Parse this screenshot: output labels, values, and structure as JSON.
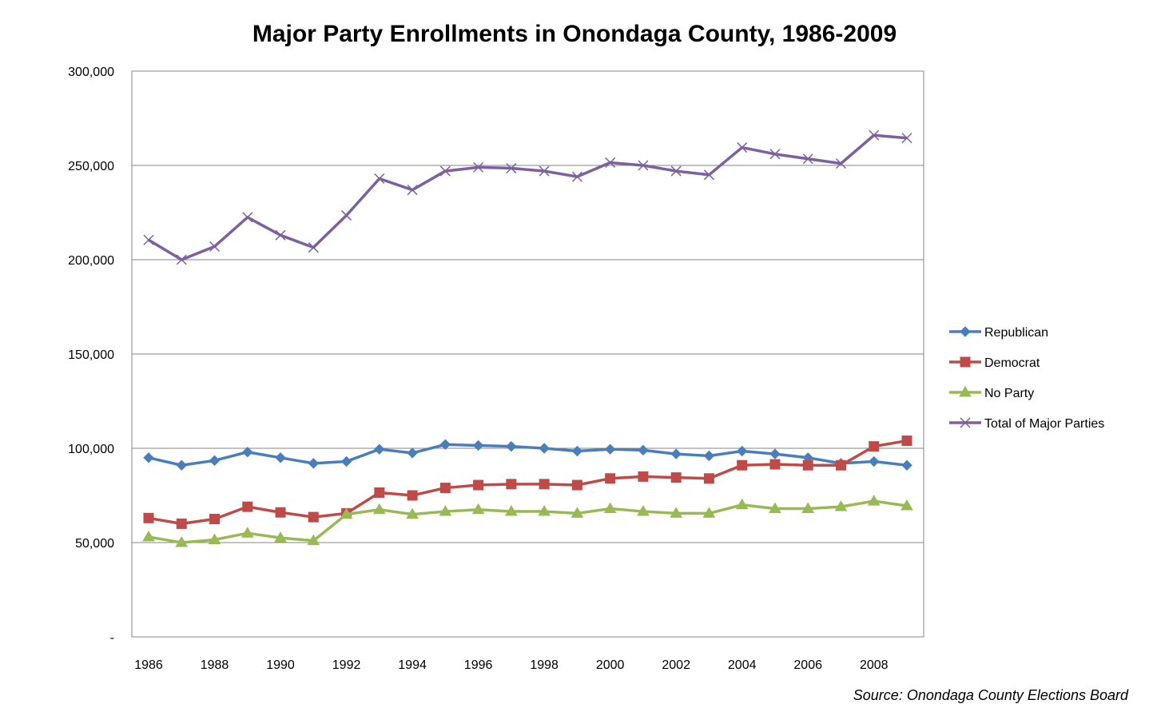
{
  "chart_data": {
    "type": "line",
    "title": "Major Party Enrollments in Onondaga County, 1986-2009",
    "source": "Source: Onondaga County Elections Board",
    "x": [
      1986,
      1987,
      1988,
      1989,
      1990,
      1991,
      1992,
      1993,
      1994,
      1995,
      1996,
      1997,
      1998,
      1999,
      2000,
      2001,
      2002,
      2003,
      2004,
      2005,
      2006,
      2007,
      2008,
      2009
    ],
    "x_tick_labels": [
      "1986",
      "1988",
      "1990",
      "1992",
      "1994",
      "1996",
      "1998",
      "2000",
      "2002",
      "2004",
      "2006",
      "2008"
    ],
    "ylim": [
      0,
      300000
    ],
    "y_tick_labels": [
      "-",
      "50,000",
      "100,000",
      "150,000",
      "200,000",
      "250,000",
      "300,000"
    ],
    "grid": true,
    "legend_position": "right",
    "series": [
      {
        "name": "Republican",
        "color": "#4a7ebb",
        "marker": "diamond",
        "values": [
          95000,
          91000,
          93500,
          98000,
          95000,
          92000,
          93000,
          99500,
          97500,
          102000,
          101500,
          101000,
          100000,
          98500,
          99500,
          99000,
          97000,
          96000,
          98500,
          97000,
          95000,
          92000,
          93000,
          91000
        ]
      },
      {
        "name": "Democrat",
        "color": "#be4b48",
        "marker": "square",
        "values": [
          63000,
          60000,
          62500,
          69000,
          66000,
          63500,
          65500,
          76500,
          75000,
          79000,
          80500,
          81000,
          81000,
          80500,
          84000,
          85000,
          84500,
          84000,
          91000,
          91500,
          91000,
          91000,
          101000,
          104000
        ]
      },
      {
        "name": "No Party",
        "color": "#98b954",
        "marker": "triangle",
        "values": [
          53000,
          50000,
          51500,
          55000,
          52500,
          51000,
          65000,
          67500,
          65000,
          66500,
          67500,
          66500,
          66500,
          65500,
          68000,
          66500,
          65500,
          65500,
          70000,
          68000,
          68000,
          69000,
          72000,
          69500
        ]
      },
      {
        "name": "Total of Major Parties",
        "color": "#7d60a0",
        "marker": "x",
        "values": [
          210500,
          200000,
          207000,
          222500,
          213000,
          206500,
          223500,
          243000,
          237000,
          247000,
          249000,
          248500,
          247000,
          244000,
          251500,
          250000,
          247000,
          245000,
          259500,
          256000,
          253500,
          251000,
          266000,
          264500
        ]
      }
    ]
  }
}
